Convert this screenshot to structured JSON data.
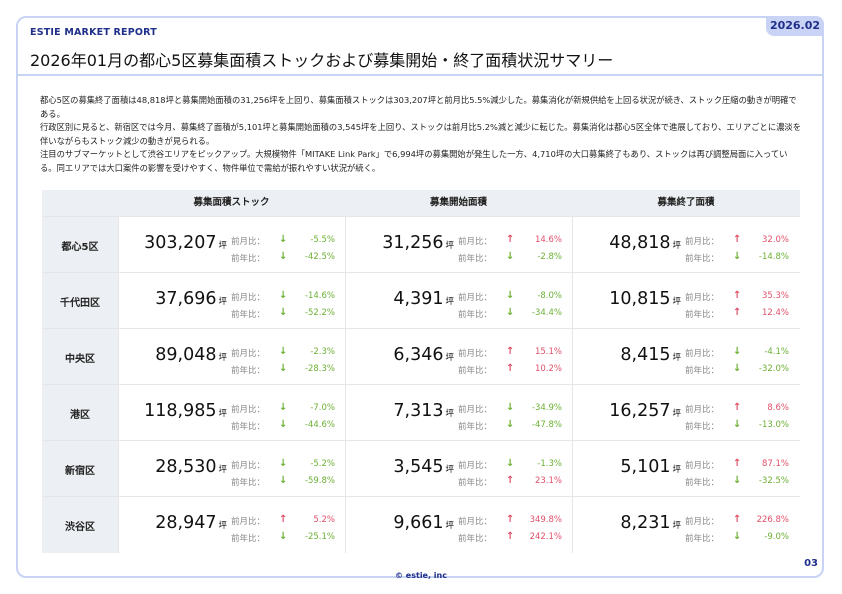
{
  "header": {
    "brand": "ESTIE MARKET REPORT",
    "date": "2026.02",
    "title": "2026年01月の都心5区募集面積ストックおよび募集開始・終了面積状況サマリー"
  },
  "summary": [
    "都心5区の募集終了面積は48,818坪と募集開始面積の31,256坪を上回り、募集面積ストックは303,207坪と前月比5.5%減少した。募集消化が新規供給を上回る状況が続き、ストック圧縮の動きが明確である。",
    "行政区別に見ると、新宿区では今月、募集終了面積が5,101坪と募集開始面積の3,545坪を上回り、ストックは前月比5.2%減と減少に転じた。募集消化は都心5区全体で進展しており、エリアごとに濃淡を伴いながらもストック減少の動きが見られる。",
    "注目のサブマーケットとして渋谷エリアをピックアップ。大規模物件「MITAKE Link Park」で6,994坪の募集開始が発生した一方、4,710坪の大口募集終了もあり、ストックは再び調整局面に入っている。同エリアでは大口案件の影響を受けやすく、物件単位で需給が振れやすい状況が続く。"
  ],
  "table": {
    "columns": [
      "募集面積ストック",
      "募集開始面積",
      "募集終了面積"
    ],
    "unit": "坪",
    "mom_label": "前月比：",
    "yoy_label": "前年比：",
    "rows": [
      {
        "area": "都心5区",
        "cells": [
          {
            "value": "303,207",
            "mom": "-5.5%",
            "mom_dir": "down",
            "yoy": "-42.5%",
            "yoy_dir": "down"
          },
          {
            "value": "31,256",
            "mom": "14.6%",
            "mom_dir": "up",
            "yoy": "-2.8%",
            "yoy_dir": "down"
          },
          {
            "value": "48,818",
            "mom": "32.0%",
            "mom_dir": "up",
            "yoy": "-14.8%",
            "yoy_dir": "down"
          }
        ]
      },
      {
        "area": "千代田区",
        "cells": [
          {
            "value": "37,696",
            "mom": "-14.6%",
            "mom_dir": "down",
            "yoy": "-52.2%",
            "yoy_dir": "down"
          },
          {
            "value": "4,391",
            "mom": "-8.0%",
            "mom_dir": "down",
            "yoy": "-34.4%",
            "yoy_dir": "down"
          },
          {
            "value": "10,815",
            "mom": "35.3%",
            "mom_dir": "up",
            "yoy": "12.4%",
            "yoy_dir": "up"
          }
        ]
      },
      {
        "area": "中央区",
        "cells": [
          {
            "value": "89,048",
            "mom": "-2.3%",
            "mom_dir": "down",
            "yoy": "-28.3%",
            "yoy_dir": "down"
          },
          {
            "value": "6,346",
            "mom": "15.1%",
            "mom_dir": "up",
            "yoy": "10.2%",
            "yoy_dir": "up"
          },
          {
            "value": "8,415",
            "mom": "-4.1%",
            "mom_dir": "down",
            "yoy": "-32.0%",
            "yoy_dir": "down"
          }
        ]
      },
      {
        "area": "港区",
        "cells": [
          {
            "value": "118,985",
            "mom": "-7.0%",
            "mom_dir": "down",
            "yoy": "-44.6%",
            "yoy_dir": "down"
          },
          {
            "value": "7,313",
            "mom": "-34.9%",
            "mom_dir": "down",
            "yoy": "-47.8%",
            "yoy_dir": "down"
          },
          {
            "value": "16,257",
            "mom": "8.6%",
            "mom_dir": "up",
            "yoy": "-13.0%",
            "yoy_dir": "down"
          }
        ]
      },
      {
        "area": "新宿区",
        "cells": [
          {
            "value": "28,530",
            "mom": "-5.2%",
            "mom_dir": "down",
            "yoy": "-59.8%",
            "yoy_dir": "down"
          },
          {
            "value": "3,545",
            "mom": "-1.3%",
            "mom_dir": "down",
            "yoy": "23.1%",
            "yoy_dir": "up"
          },
          {
            "value": "5,101",
            "mom": "87.1%",
            "mom_dir": "up",
            "yoy": "-32.5%",
            "yoy_dir": "down"
          }
        ]
      },
      {
        "area": "渋谷区",
        "cells": [
          {
            "value": "28,947",
            "mom": "5.2%",
            "mom_dir": "up",
            "yoy": "-25.1%",
            "yoy_dir": "down"
          },
          {
            "value": "9,661",
            "mom": "349.8%",
            "mom_dir": "up",
            "yoy": "242.1%",
            "yoy_dir": "up"
          },
          {
            "value": "8,231",
            "mom": "226.8%",
            "mom_dir": "up",
            "yoy": "-9.0%",
            "yoy_dir": "down"
          }
        ]
      }
    ]
  },
  "colors": {
    "accent": "#1f2f8a",
    "frame": "#c9d3f5",
    "up": "#e0506a",
    "down": "#6cb035"
  },
  "footer": {
    "copyright": "© estie, inc",
    "page": "03"
  }
}
